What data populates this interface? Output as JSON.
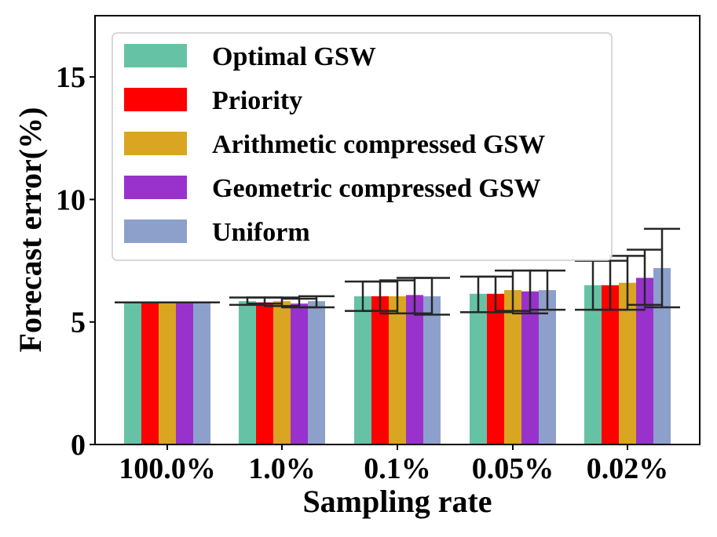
{
  "chart_data": {
    "type": "bar",
    "title": "",
    "xlabel": "Sampling rate",
    "ylabel": "Forecast error(%)",
    "ylim": [
      0,
      17.5
    ],
    "yticks": [
      0,
      5,
      10,
      15
    ],
    "grid": false,
    "legend_position": "top-left",
    "categories": [
      "100.0%",
      "1.0%",
      "0.1%",
      "0.05%",
      "0.02%"
    ],
    "series": [
      {
        "name": "Optimal GSW",
        "color": "#66c2a5",
        "values": [
          5.8,
          5.85,
          6.05,
          6.15,
          6.5
        ],
        "err_low": [
          5.8,
          5.7,
          5.45,
          5.4,
          5.5
        ],
        "err_high": [
          5.8,
          6.0,
          6.65,
          6.85,
          7.5
        ]
      },
      {
        "name": "Priority",
        "color": "#ff0000",
        "values": [
          5.8,
          5.8,
          6.05,
          6.15,
          6.5
        ],
        "err_low": [
          5.8,
          5.75,
          5.45,
          5.4,
          5.5
        ],
        "err_high": [
          5.8,
          6.0,
          6.65,
          6.85,
          7.5
        ]
      },
      {
        "name": "Arithmetic compressed GSW",
        "color": "#daa520",
        "values": [
          5.8,
          5.85,
          6.05,
          6.3,
          6.6
        ],
        "err_low": [
          5.8,
          5.65,
          5.35,
          5.45,
          5.5
        ],
        "err_high": [
          5.8,
          6.0,
          6.7,
          7.1,
          7.7
        ]
      },
      {
        "name": "Geometric compressed GSW",
        "color": "#9932cc",
        "values": [
          5.8,
          5.75,
          6.1,
          6.25,
          6.8
        ],
        "err_low": [
          5.8,
          5.6,
          5.35,
          5.35,
          5.7
        ],
        "err_high": [
          5.8,
          5.95,
          6.8,
          7.1,
          7.95
        ]
      },
      {
        "name": "Uniform",
        "color": "#8da0cb",
        "values": [
          5.8,
          5.85,
          6.05,
          6.3,
          7.2
        ],
        "err_low": [
          5.8,
          5.6,
          5.3,
          5.5,
          5.6
        ],
        "err_high": [
          5.8,
          6.05,
          6.8,
          7.1,
          8.8
        ]
      }
    ]
  }
}
